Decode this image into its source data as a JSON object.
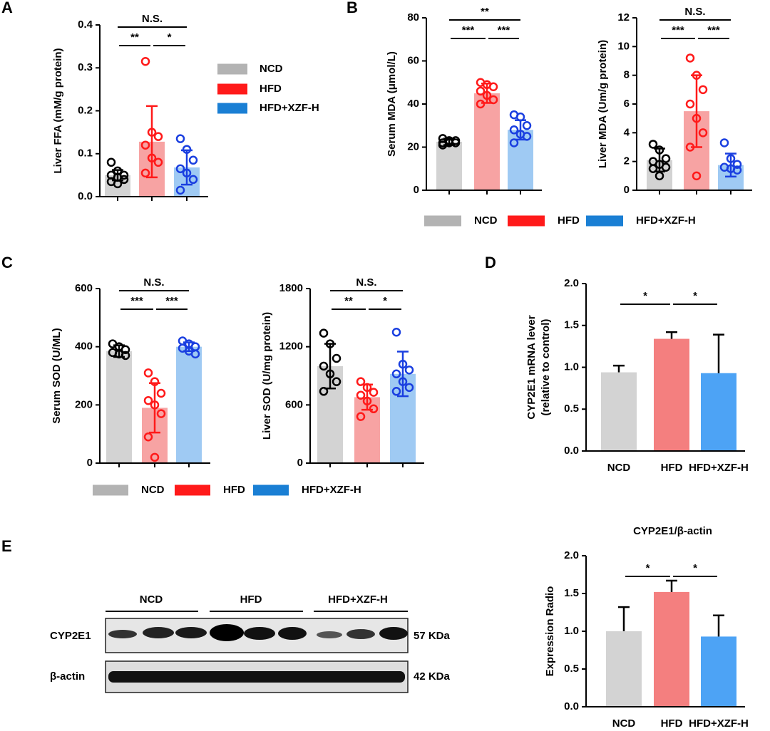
{
  "panels": [
    "A",
    "B",
    "C",
    "D",
    "E"
  ],
  "legends": [
    {
      "items": [
        {
          "name": "NCD",
          "color": "#b3b3b3"
        },
        {
          "name": "HFD",
          "color": "#ff1a1a"
        },
        {
          "name": "HFD+XZF-H",
          "color": "#1a7fd4"
        }
      ]
    },
    {
      "items": [
        {
          "name": "NCD",
          "color": "#b3b3b3"
        },
        {
          "name": "HFD",
          "color": "#ff1a1a"
        },
        {
          "name": "HFD+XZF-H",
          "color": "#1a7fd4"
        }
      ]
    },
    {
      "items": [
        {
          "name": "NCD",
          "color": "#b3b3b3"
        },
        {
          "name": "HFD",
          "color": "#ff1a1a"
        },
        {
          "name": "HFD+XZF-H",
          "color": "#1a7fd4"
        }
      ]
    }
  ],
  "blot": {
    "groups": [
      "NCD",
      "HFD",
      "HFD+XZF-H"
    ],
    "rows": [
      {
        "protein": "CYP2E1",
        "size": "57 KDa"
      },
      {
        "protein": "β-actin",
        "size": "42 KDa"
      }
    ]
  },
  "chart_data": [
    {
      "type": "bar",
      "y_label": "Liver FFA (mM/g protein)",
      "values": [
        0.05,
        0.128,
        0.068
      ],
      "errors": [
        0.012,
        0.083,
        0.04
      ],
      "points": [
        [
          0.08,
          0.06,
          0.05,
          0.05,
          0.045,
          0.04,
          0.035,
          0.03
        ],
        [
          0.315,
          0.15,
          0.14,
          0.12,
          0.09,
          0.08,
          0.055
        ],
        [
          0.135,
          0.11,
          0.085,
          0.065,
          0.055,
          0.04,
          0.015
        ]
      ],
      "colors": [
        "#d3d3d3",
        "#f7a3a3",
        "#9fcaf3"
      ],
      "point_colors": [
        "#000000",
        "#ff1a1a",
        "#1a3fe0"
      ],
      "error_direction": "both",
      "ylim": [
        0,
        0.4
      ],
      "yticks": [
        {
          "value": 0,
          "label": "0.0"
        },
        0.1,
        0.2,
        0.3,
        0.4
      ],
      "annotations": [
        {
          "text": "N.S.",
          "groups": [
            0,
            2
          ]
        },
        {
          "text": "**",
          "groups": [
            0,
            1
          ]
        },
        {
          "text": "*",
          "groups": [
            1,
            2
          ]
        }
      ]
    },
    {
      "type": "bar",
      "y_label": "Serum MDA (μmol/L)",
      "values": [
        22.5,
        45,
        28
      ],
      "errors": [
        1.5,
        4.5,
        4.5
      ],
      "points": [
        [
          24,
          23,
          23,
          22,
          22,
          22,
          21
        ],
        [
          50,
          49,
          48,
          46,
          44,
          42,
          40
        ],
        [
          35,
          34,
          30,
          28,
          26,
          25,
          22
        ]
      ],
      "colors": [
        "#d3d3d3",
        "#f7a3a3",
        "#9fcaf3"
      ],
      "point_colors": [
        "#000000",
        "#ff1a1a",
        "#1a3fe0"
      ],
      "error_direction": "both",
      "ylim": [
        0,
        80
      ],
      "yticks": [
        0,
        20,
        40,
        60,
        80
      ],
      "annotations": [
        {
          "text": "**",
          "groups": [
            0,
            2
          ]
        },
        {
          "text": "***",
          "groups": [
            0,
            1
          ]
        },
        {
          "text": "***",
          "groups": [
            1,
            2
          ]
        }
      ]
    },
    {
      "type": "bar",
      "y_label": "Liver MDA (Um/g protein)",
      "values": [
        2.1,
        5.5,
        1.75
      ],
      "errors": [
        0.8,
        2.5,
        0.8
      ],
      "points": [
        [
          3.2,
          2.8,
          2.2,
          2.0,
          1.8,
          1.6,
          1.5,
          1.0
        ],
        [
          9.2,
          8,
          7,
          6,
          5,
          4,
          3,
          1
        ],
        [
          3.3,
          2.2,
          1.8,
          1.6,
          1.5,
          1.4
        ]
      ],
      "colors": [
        "#d3d3d3",
        "#f7a3a3",
        "#9fcaf3"
      ],
      "point_colors": [
        "#000000",
        "#ff1a1a",
        "#1a3fe0"
      ],
      "error_direction": "both",
      "ylim": [
        0,
        12
      ],
      "yticks": [
        0,
        2,
        4,
        6,
        8,
        10,
        12
      ],
      "annotations": [
        {
          "text": "N.S.",
          "groups": [
            0,
            2
          ]
        },
        {
          "text": "***",
          "groups": [
            0,
            1
          ]
        },
        {
          "text": "***",
          "groups": [
            1,
            2
          ]
        }
      ]
    },
    {
      "type": "bar",
      "y_label": "Serum SOD (U/ML)",
      "values": [
        385,
        190,
        400
      ],
      "errors": [
        20,
        85,
        15
      ],
      "points": [
        [
          410,
          400,
          390,
          380,
          375,
          370
        ],
        [
          310,
          280,
          240,
          215,
          200,
          170,
          90,
          20
        ],
        [
          420,
          410,
          400,
          395,
          385,
          375
        ]
      ],
      "colors": [
        "#d3d3d3",
        "#f7a3a3",
        "#9fcaf3"
      ],
      "point_colors": [
        "#000000",
        "#ff1a1a",
        "#1a3fe0"
      ],
      "error_direction": "both",
      "ylim": [
        0,
        600
      ],
      "yticks": [
        0,
        200,
        400,
        600
      ],
      "annotations": [
        {
          "text": "N.S.",
          "groups": [
            0,
            2
          ]
        },
        {
          "text": "***",
          "groups": [
            0,
            1
          ]
        },
        {
          "text": "***",
          "groups": [
            1,
            2
          ]
        }
      ]
    },
    {
      "type": "bar",
      "y_label": "Liver SOD (U/mg protein)",
      "values": [
        1000,
        680,
        920
      ],
      "errors": [
        230,
        130,
        230
      ],
      "points": [
        [
          1340,
          1230,
          1080,
          1000,
          920,
          840,
          740
        ],
        [
          840,
          780,
          730,
          700,
          640,
          560,
          480
        ],
        [
          1350,
          1020,
          960,
          920,
          840,
          780,
          740
        ]
      ],
      "colors": [
        "#d3d3d3",
        "#f7a3a3",
        "#9fcaf3"
      ],
      "point_colors": [
        "#000000",
        "#ff1a1a",
        "#1a3fe0"
      ],
      "error_direction": "both",
      "ylim": [
        0,
        1800
      ],
      "yticks": [
        0,
        600,
        1200,
        1800
      ],
      "annotations": [
        {
          "text": "N.S.",
          "groups": [
            0,
            2
          ]
        },
        {
          "text": "**",
          "groups": [
            0,
            1
          ]
        },
        {
          "text": "*",
          "groups": [
            1,
            2
          ]
        }
      ]
    },
    {
      "type": "bar",
      "y_label": [
        "CYP2E1 mRNA lever",
        "(relative to control)"
      ],
      "categories": [
        "NCD",
        "HFD",
        "HFD+XZF-H"
      ],
      "values": [
        0.94,
        1.34,
        0.93
      ],
      "errors": [
        0.08,
        0.08,
        0.46
      ],
      "colors": [
        "#d3d3d3",
        "#f47f7f",
        "#4da3f5"
      ],
      "error_direction": "up",
      "ylim": [
        0,
        2
      ],
      "yticks": [
        {
          "value": 0,
          "label": "0.0"
        },
        0.5,
        {
          "value": 1,
          "label": "1.0"
        },
        1.5,
        {
          "value": 2,
          "label": "2.0"
        }
      ],
      "annotations": [
        {
          "text": "*",
          "groups": [
            0,
            1
          ]
        },
        {
          "text": "*",
          "groups": [
            1,
            2
          ]
        }
      ]
    },
    {
      "type": "bar",
      "title": "CYP2E1/β-actin",
      "y_label": "Expression Radio",
      "categories": [
        "NCD",
        "HFD",
        "HFD+XZF-H"
      ],
      "values": [
        1.0,
        1.52,
        0.93
      ],
      "errors": [
        0.32,
        0.15,
        0.28
      ],
      "colors": [
        "#d3d3d3",
        "#f47f7f",
        "#4da3f5"
      ],
      "error_direction": "up",
      "ylim": [
        0,
        2
      ],
      "yticks": [
        {
          "value": 0,
          "label": "0.0"
        },
        0.5,
        {
          "value": 1,
          "label": "1.0"
        },
        1.5,
        {
          "value": 2,
          "label": "2.0"
        }
      ],
      "annotations": [
        {
          "text": "*",
          "groups": [
            0,
            1
          ]
        },
        {
          "text": "*",
          "groups": [
            1,
            2
          ]
        }
      ]
    }
  ]
}
